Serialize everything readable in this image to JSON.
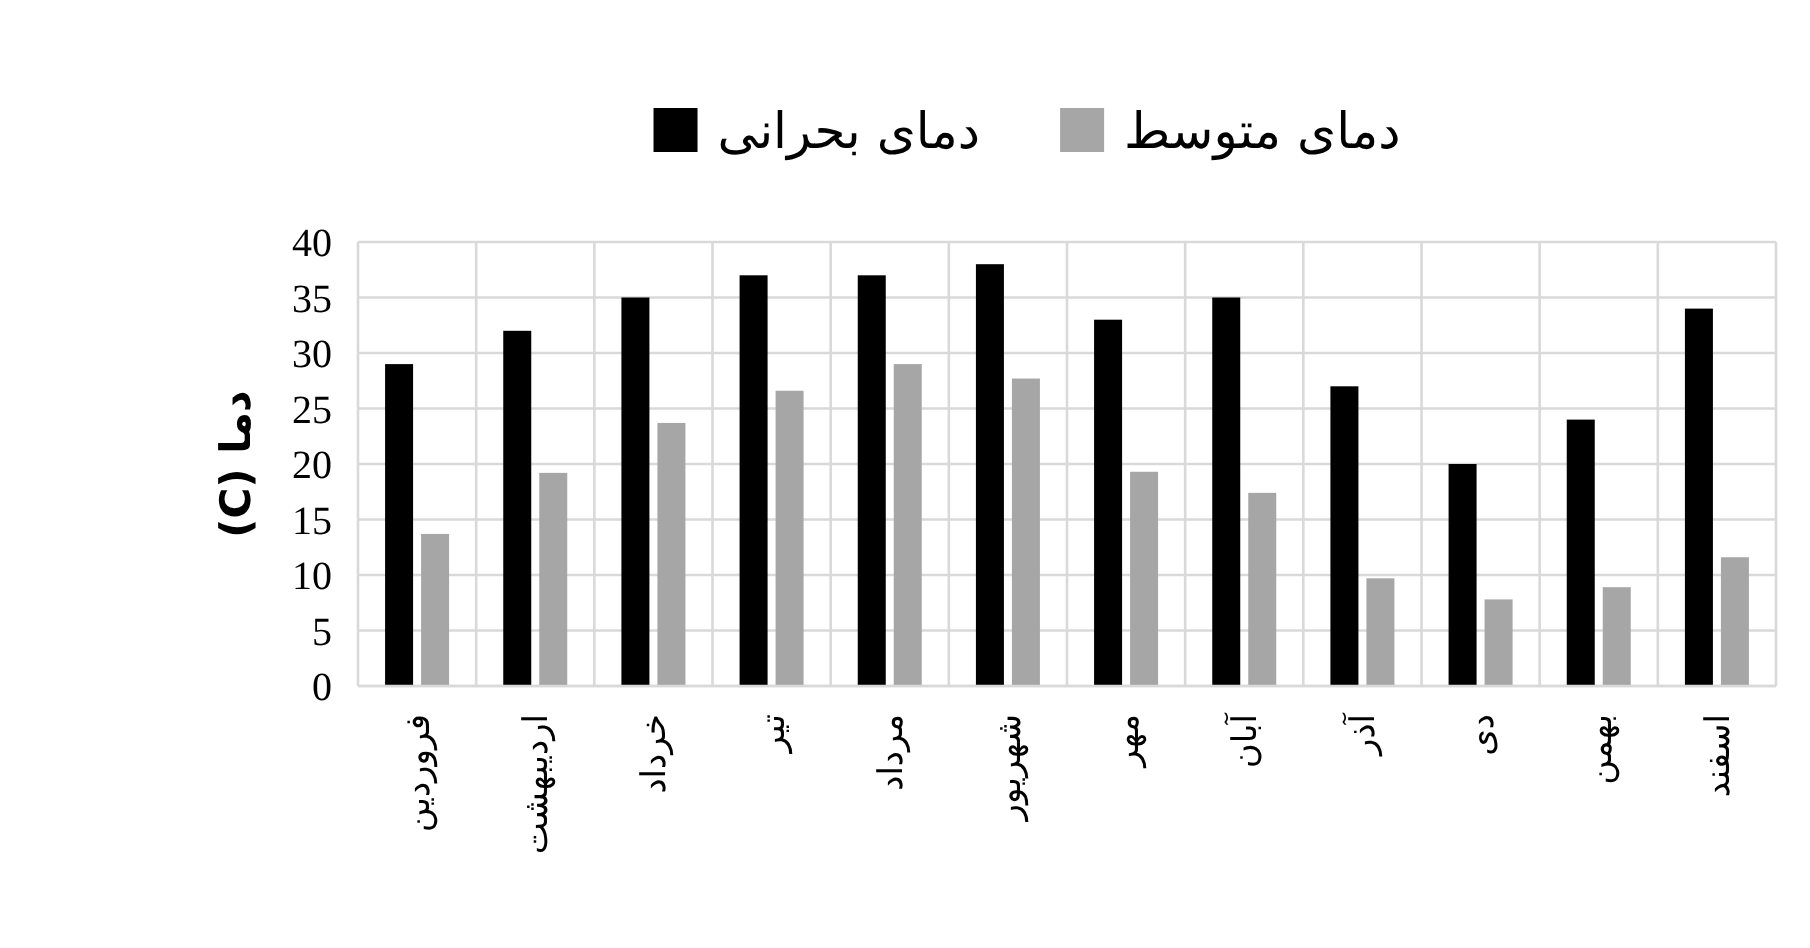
{
  "chart_data": {
    "type": "bar",
    "ylabel": "دما (C)",
    "categories": [
      "فروردین",
      "اردیبهشت",
      "خرداد",
      "تیر",
      "مرداد",
      "شهریور",
      "مهر",
      "آبان",
      "آذر",
      "دی",
      "بهمن",
      "اسفند"
    ],
    "series": [
      {
        "name": "دمای بحرانی",
        "color": "#000000",
        "values": [
          29,
          32,
          35,
          37,
          37,
          38,
          33,
          35,
          27,
          20,
          24,
          34
        ]
      },
      {
        "name": "دمای متوسط",
        "color": "#a6a6a6",
        "values": [
          13.7,
          19.2,
          23.7,
          26.6,
          29,
          27.7,
          19.3,
          17.4,
          9.7,
          7.8,
          8.9,
          11.6
        ]
      }
    ],
    "ylim": [
      0,
      40
    ],
    "yticks": [
      0,
      5,
      10,
      15,
      20,
      25,
      30,
      35,
      40
    ],
    "grid": true,
    "legend": "top"
  }
}
